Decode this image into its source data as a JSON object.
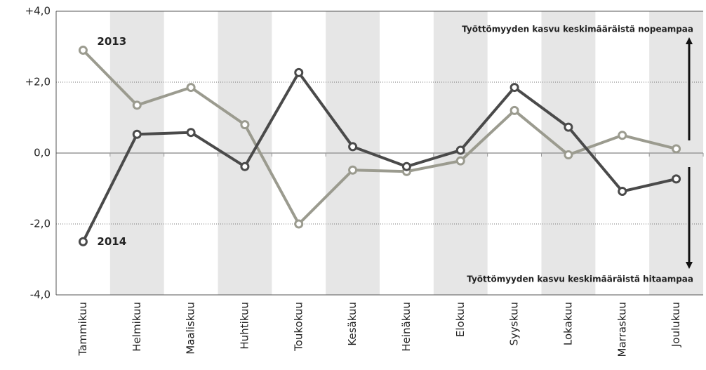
{
  "chart_data": {
    "type": "line",
    "categories": [
      "Tammikuu",
      "Helmikuu",
      "Maaliskuu",
      "Huhtikuu",
      "Toukokuu",
      "Kesäkuu",
      "Heinäkuu",
      "Elokuu",
      "Syyskuu",
      "Lokakuu",
      "Marraskuu",
      "Joulukuu"
    ],
    "series": [
      {
        "name": "2013",
        "color": "#9b9b8f",
        "values": [
          2.9,
          1.35,
          1.85,
          0.8,
          -2.0,
          -0.48,
          -0.52,
          -0.22,
          1.2,
          -0.05,
          0.5,
          0.12
        ]
      },
      {
        "name": "2014",
        "color": "#4a4a4a",
        "values": [
          -2.5,
          0.53,
          0.58,
          -0.38,
          2.27,
          0.18,
          -0.38,
          0.08,
          1.85,
          0.73,
          -1.08,
          -0.73
        ]
      }
    ],
    "ylim": [
      -4,
      4
    ],
    "yticks": [
      {
        "value": -4,
        "label": "-4,0"
      },
      {
        "value": -2,
        "label": "-2,0"
      },
      {
        "value": 0,
        "label": "0,0"
      },
      {
        "value": 2,
        "label": "+2,0"
      },
      {
        "value": 4,
        "label": "+4,0"
      }
    ],
    "annotations": [
      "Työttömyyden kasvu keskimääräistä nopeampaa",
      "Työttömyyden kasvu keskimääräistä hitaampaa"
    ],
    "grid": true
  }
}
